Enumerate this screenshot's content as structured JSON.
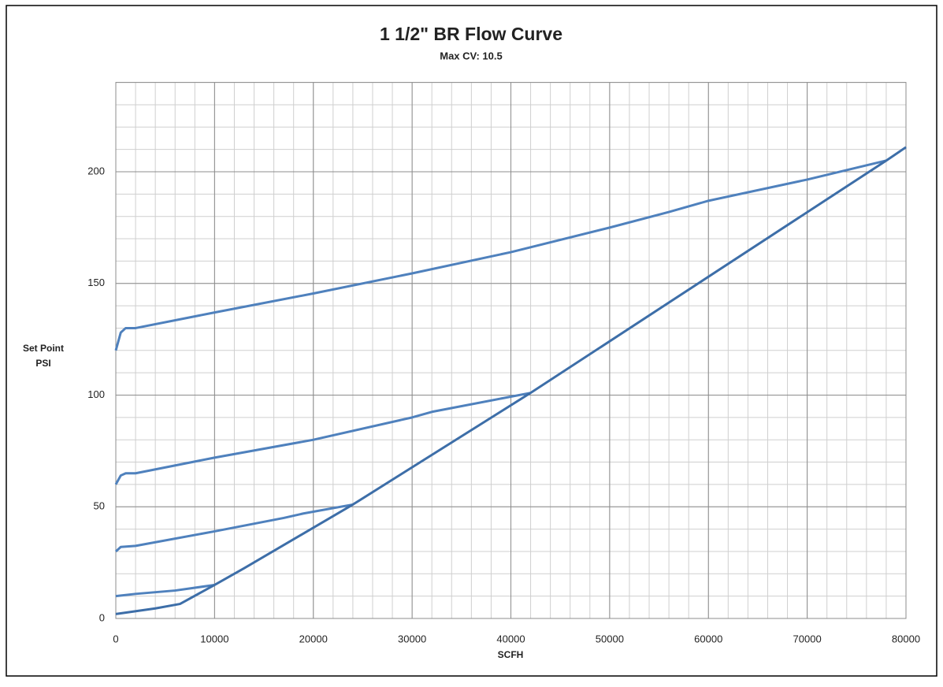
{
  "chart_data": {
    "type": "line",
    "title": "1 1/2\" BR Flow Curve",
    "subtitle": "Max CV: 10.5",
    "x_label": "SCFH",
    "y_label": [
      "Set Point",
      "PSI"
    ],
    "xlim": [
      0,
      80000
    ],
    "ylim": [
      0,
      240
    ],
    "xticks": [
      0,
      10000,
      20000,
      30000,
      40000,
      50000,
      60000,
      70000,
      80000
    ],
    "yticks": [
      0,
      50,
      100,
      150,
      200
    ],
    "x_minor_step": 2000,
    "y_minor_step": 10,
    "grid": true,
    "series": [
      {
        "color": "#4f81bd",
        "x": [
          0,
          500,
          1000,
          2000,
          10000,
          20000,
          30000,
          40000,
          50000,
          56000,
          60000,
          70000,
          78000
        ],
        "values": [
          120,
          128,
          130,
          130,
          137,
          145.5,
          154.5,
          164,
          175,
          182,
          187,
          196.5,
          205
        ]
      },
      {
        "color": "#4f81bd",
        "x": [
          0,
          500,
          1000,
          2000,
          10000,
          20000,
          30000,
          32000,
          42000
        ],
        "values": [
          60,
          64,
          65,
          65,
          72,
          80,
          90,
          92.5,
          101
        ]
      },
      {
        "color": "#4f81bd",
        "x": [
          0,
          500,
          2000,
          10000,
          17000,
          19000,
          24000
        ],
        "values": [
          30,
          32,
          32.5,
          39,
          45,
          47,
          51
        ]
      },
      {
        "color": "#4f81bd",
        "x": [
          0,
          2000,
          6000,
          10000
        ],
        "values": [
          10,
          11,
          12.5,
          15
        ]
      },
      {
        "color": "#3d6ea8",
        "x": [
          0,
          4000,
          6500,
          10000,
          13000,
          24000,
          42000,
          78000,
          80000
        ],
        "values": [
          2,
          4.5,
          6.5,
          15,
          22.5,
          51,
          101,
          205,
          211
        ]
      }
    ]
  }
}
